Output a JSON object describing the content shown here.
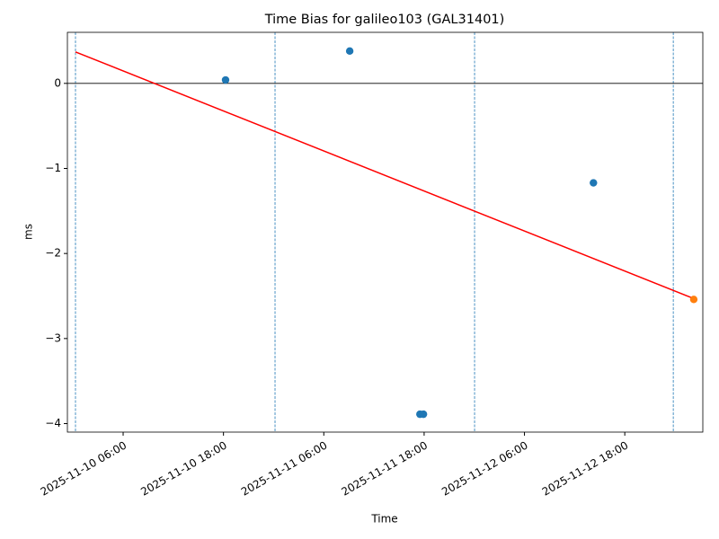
{
  "chart_data": {
    "type": "scatter",
    "title": "Time Bias for galileo103 (GAL31401)",
    "xlabel": "Time",
    "ylabel": "ms",
    "xlim": [
      "2025-11-09 23:20",
      "2025-11-13 03:20"
    ],
    "ylim": [
      -4.1,
      0.6
    ],
    "xticks": [
      "2025-11-10 06:00",
      "2025-11-10 18:00",
      "2025-11-11 06:00",
      "2025-11-11 18:00",
      "2025-11-12 06:00",
      "2025-11-12 18:00"
    ],
    "yticks": [
      {
        "value": -4,
        "label": "−4"
      },
      {
        "value": -3,
        "label": "−3"
      },
      {
        "value": -2,
        "label": "−2"
      },
      {
        "value": -1,
        "label": "−1"
      },
      0
    ],
    "series": [
      {
        "color": "#1f77b4",
        "x": [
          "2025-11-10 18:15",
          "2025-11-11 09:06",
          "2025-11-11 17:30",
          "2025-11-11 17:55",
          "2025-11-12 14:15"
        ],
        "values": [
          0.04,
          0.38,
          -3.89,
          -3.89,
          -1.17
        ]
      },
      {
        "color": "#ff7f0e",
        "x": [
          "2025-11-13 02:15"
        ],
        "values": [
          -2.54
        ]
      }
    ],
    "fit_line": {
      "color": "#ff0000",
      "x": [
        "2025-11-10 00:18",
        "2025-11-13 02:15"
      ],
      "values": [
        0.37,
        -2.53
      ]
    },
    "vlines": {
      "color": "#1f77b4",
      "x": [
        "2025-11-10 00:18",
        "2025-11-11 00:10",
        "2025-11-12 00:02",
        "2025-11-12 23:48"
      ]
    },
    "hline": {
      "value": 0,
      "color": "#000000"
    }
  }
}
